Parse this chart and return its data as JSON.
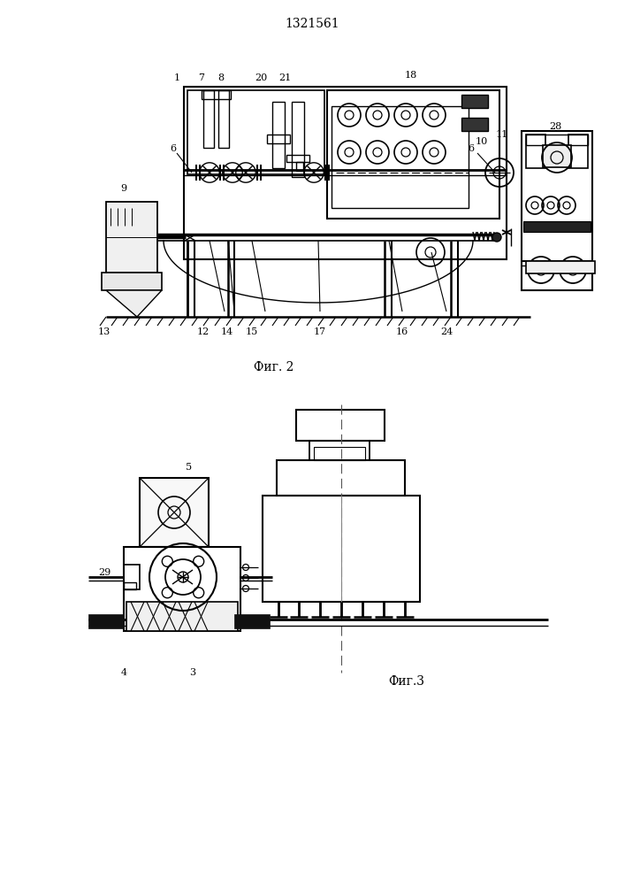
{
  "title": "1321561",
  "fig2_label": "Фиг. 2",
  "fig3_label": "Фиг.3",
  "bg_color": "#ffffff"
}
